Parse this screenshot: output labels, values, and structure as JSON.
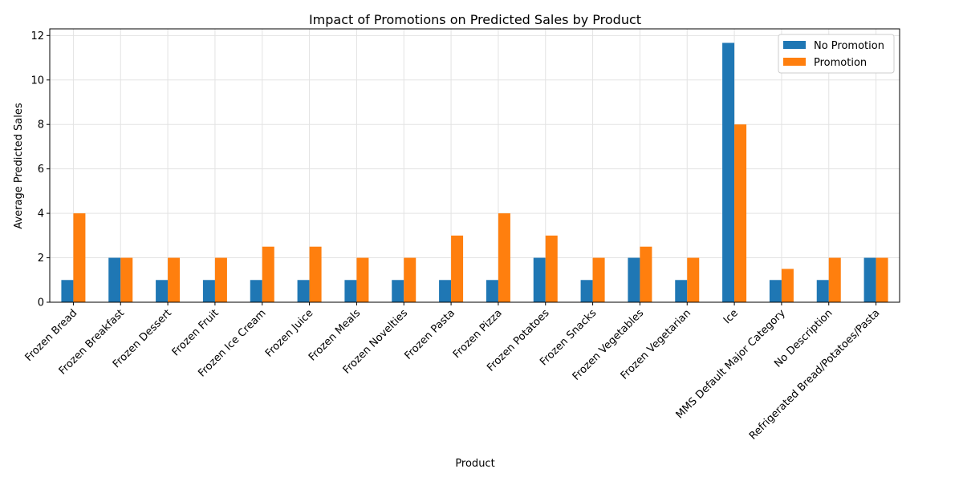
{
  "chart_data": {
    "type": "bar",
    "title": "Impact of Promotions on Predicted Sales by Product",
    "xlabel": "Product",
    "ylabel": "Average Predicted Sales",
    "categories": [
      "Frozen Bread",
      "Frozen Breakfast",
      "Frozen Dessert",
      "Frozen Fruit",
      "Frozen Ice Cream",
      "Frozen Juice",
      "Frozen Meals",
      "Frozen Novelties",
      "Frozen Pasta",
      "Frozen Pizza",
      "Frozen Potatoes",
      "Frozen Snacks",
      "Frozen Vegetables",
      "Frozen Vegetarian",
      "Ice",
      "MMS Default Major Category",
      "No Description",
      "Refrigerated Bread/Potatoes/Pasta"
    ],
    "series": [
      {
        "name": "No Promotion",
        "color": "#1f77b4",
        "values": [
          1,
          2,
          1,
          1,
          1,
          1,
          1,
          1,
          1,
          1,
          2,
          1,
          2,
          1,
          11.67,
          1,
          1,
          2
        ]
      },
      {
        "name": "Promotion",
        "color": "#ff7f0e",
        "values": [
          4,
          2,
          2,
          2,
          2.5,
          2.5,
          2,
          2,
          3,
          4,
          3,
          2,
          2.5,
          2,
          8,
          1.5,
          2,
          2
        ]
      }
    ],
    "ylim": [
      0,
      12.3
    ],
    "yticks": [
      0,
      2,
      4,
      6,
      8,
      10,
      12
    ],
    "grid": true,
    "legend": "top-right"
  }
}
